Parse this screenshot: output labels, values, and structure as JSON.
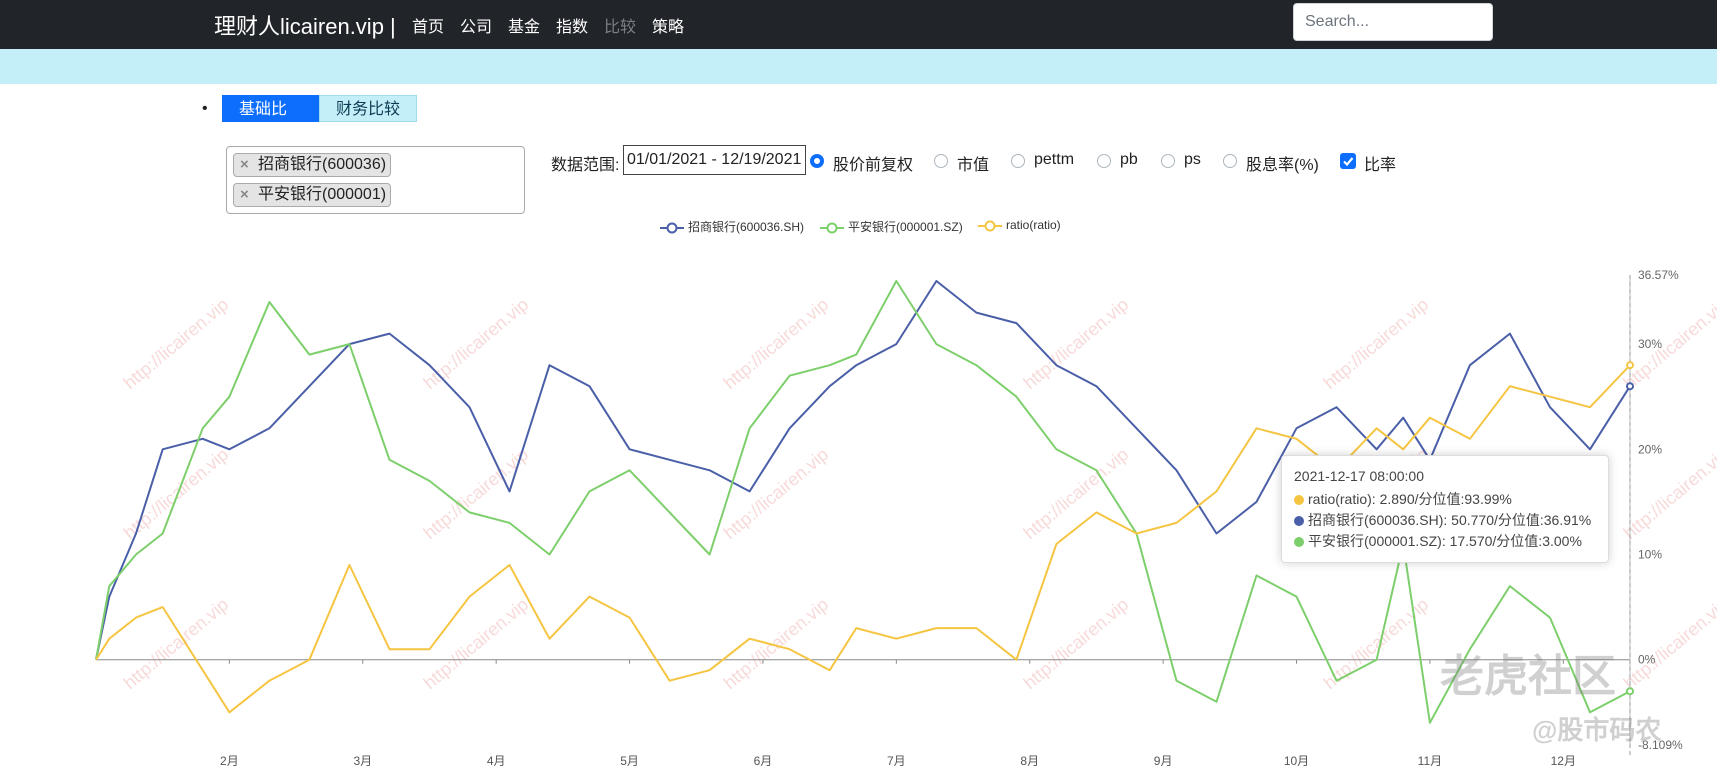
{
  "nav": {
    "brand": "理财人licairen.vip |",
    "links": [
      "首页",
      "公司",
      "基金",
      "指数",
      "比较",
      "策略"
    ],
    "disabled_link": "比较",
    "search_placeholder": "Search..."
  },
  "tabs": [
    "基础比较",
    "财务比较"
  ],
  "selected_stocks": [
    "招商银行(600036)",
    "平安银行(000001)"
  ],
  "range": {
    "label": "数据范围:",
    "value": "01/01/2021 - 12/19/2021"
  },
  "options": [
    {
      "label": "股价前复权",
      "type": "radio",
      "checked": true
    },
    {
      "label": "市值",
      "type": "radio",
      "checked": false
    },
    {
      "label": "pettm",
      "type": "radio",
      "checked": false
    },
    {
      "label": "pb",
      "type": "radio",
      "checked": false
    },
    {
      "label": "ps",
      "type": "radio",
      "checked": false
    },
    {
      "label": "股息率(%)",
      "type": "radio",
      "checked": false
    },
    {
      "label": "比率",
      "type": "checkbox",
      "checked": true
    }
  ],
  "watermark_text": "http://licairen.vip",
  "logo_text": "老虎社区",
  "logo_sub": "@股市码农",
  "tooltip": {
    "title": "2021-12-17 08:00:00",
    "rows": [
      {
        "color": "#f5c542",
        "text": "ratio(ratio): 2.890/分位值:93.99%"
      },
      {
        "color": "#4a5fa8",
        "text": "招商银行(600036.SH): 50.770/分位值:36.91%"
      },
      {
        "color": "#7dcf6b",
        "text": "平安银行(000001.SZ): 17.570/分位值:3.00%"
      }
    ]
  },
  "chart_data": {
    "type": "line",
    "x_labels": [
      "2月",
      "3月",
      "4月",
      "5月",
      "6月",
      "7月",
      "8月",
      "9月",
      "10月",
      "11月",
      "12月"
    ],
    "y_axis": {
      "position": "right",
      "min": -8.109,
      "max": 36.57,
      "ticks": [
        "36.57%",
        "30%",
        "20%",
        "10%",
        "0%",
        "-8.109%"
      ],
      "unit": "%"
    },
    "legend": [
      "招商银行(600036.SH)",
      "平安银行(000001.SZ)",
      "ratio(ratio)"
    ],
    "series": [
      {
        "name": "招商银行(600036.SH)",
        "color": "#4a5fa8",
        "x": [
          0,
          0.1,
          0.3,
          0.5,
          0.8,
          1,
          1.3,
          1.6,
          1.9,
          2.2,
          2.5,
          2.8,
          3.1,
          3.4,
          3.7,
          4,
          4.3,
          4.6,
          4.9,
          5.2,
          5.5,
          5.7,
          6,
          6.3,
          6.6,
          6.9,
          7.2,
          7.5,
          7.8,
          8.1,
          8.4,
          8.7,
          9,
          9.3,
          9.6,
          9.8,
          10,
          10.3,
          10.6,
          10.9,
          11.2,
          11.5
        ],
        "y": [
          0,
          6,
          12,
          20,
          21,
          20,
          22,
          26,
          30,
          31,
          28,
          24,
          16,
          28,
          26,
          20,
          19,
          18,
          16,
          22,
          26,
          28,
          30,
          36,
          33,
          32,
          28,
          26,
          22,
          18,
          12,
          15,
          22,
          24,
          20,
          23,
          19,
          28,
          31,
          24,
          20,
          26
        ]
      },
      {
        "name": "平安银行(000001.SZ)",
        "color": "#7dcf6b",
        "x": [
          0,
          0.1,
          0.3,
          0.5,
          0.8,
          1,
          1.3,
          1.6,
          1.9,
          2.2,
          2.5,
          2.8,
          3.1,
          3.4,
          3.7,
          4,
          4.3,
          4.6,
          4.9,
          5.2,
          5.5,
          5.7,
          6,
          6.3,
          6.6,
          6.9,
          7.2,
          7.5,
          7.8,
          8.1,
          8.4,
          8.7,
          9,
          9.3,
          9.6,
          9.8,
          10,
          10.3,
          10.6,
          10.9,
          11.2,
          11.5
        ],
        "y": [
          0,
          7,
          10,
          12,
          22,
          25,
          34,
          29,
          30,
          19,
          17,
          14,
          13,
          10,
          16,
          18,
          14,
          10,
          22,
          27,
          28,
          29,
          36,
          30,
          28,
          25,
          20,
          18,
          12,
          -2,
          -4,
          8,
          6,
          -2,
          0,
          11,
          -6,
          1,
          7,
          4,
          -5,
          -3
        ]
      },
      {
        "name": "ratio(ratio)",
        "color": "#f5c542",
        "x": [
          0,
          0.1,
          0.3,
          0.5,
          0.8,
          1,
          1.3,
          1.6,
          1.9,
          2.2,
          2.5,
          2.8,
          3.1,
          3.4,
          3.7,
          4,
          4.3,
          4.6,
          4.9,
          5.2,
          5.5,
          5.7,
          6,
          6.3,
          6.6,
          6.9,
          7.2,
          7.5,
          7.8,
          8.1,
          8.4,
          8.7,
          9,
          9.3,
          9.6,
          9.8,
          10,
          10.3,
          10.6,
          10.9,
          11.2,
          11.5
        ],
        "y": [
          0,
          2,
          4,
          5,
          -1,
          -5,
          -2,
          0,
          9,
          1,
          1,
          6,
          9,
          2,
          6,
          4,
          -2,
          -1,
          2,
          1,
          -1,
          3,
          2,
          3,
          3,
          0,
          11,
          14,
          12,
          13,
          16,
          22,
          21,
          18,
          22,
          20,
          23,
          21,
          26,
          25,
          24,
          28
        ]
      }
    ]
  }
}
